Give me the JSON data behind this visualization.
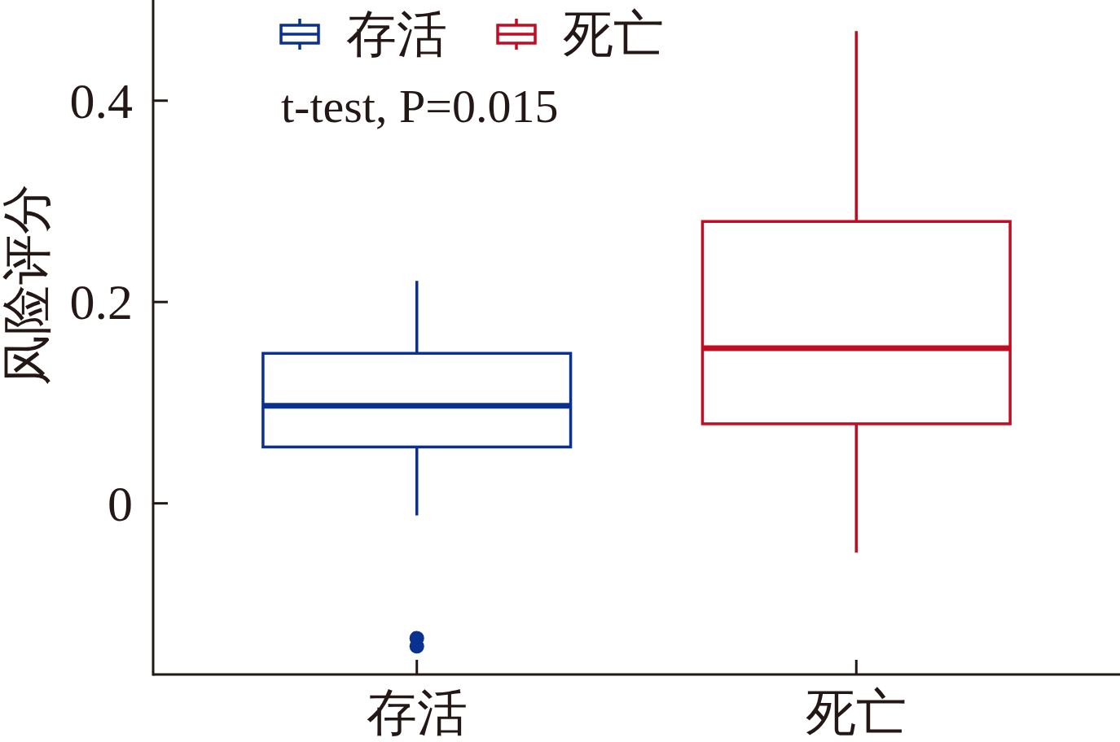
{
  "chart_data": {
    "type": "box",
    "categories": [
      "存活",
      "死亡"
    ],
    "ylabel": "风险评分",
    "ylim": [
      -0.17,
      0.5
    ],
    "yticks": [
      0,
      0.2,
      0.4
    ],
    "series": [
      {
        "name": "存活",
        "color": "#0a3190",
        "boxes": [
          {
            "low": -0.012,
            "q1": 0.056,
            "median": 0.097,
            "q3": 0.149,
            "high": 0.221,
            "outliers": [
              -0.134,
              -0.142
            ]
          },
          null
        ]
      },
      {
        "name": "死亡",
        "color": "#c00d23",
        "boxes": [
          null,
          {
            "low": -0.049,
            "q1": 0.079,
            "median": 0.154,
            "q3": 0.28,
            "high": 0.469
          }
        ]
      }
    ],
    "legend": "top left",
    "annotations": [
      "t-test, P=0.015"
    ],
    "grid": false
  }
}
